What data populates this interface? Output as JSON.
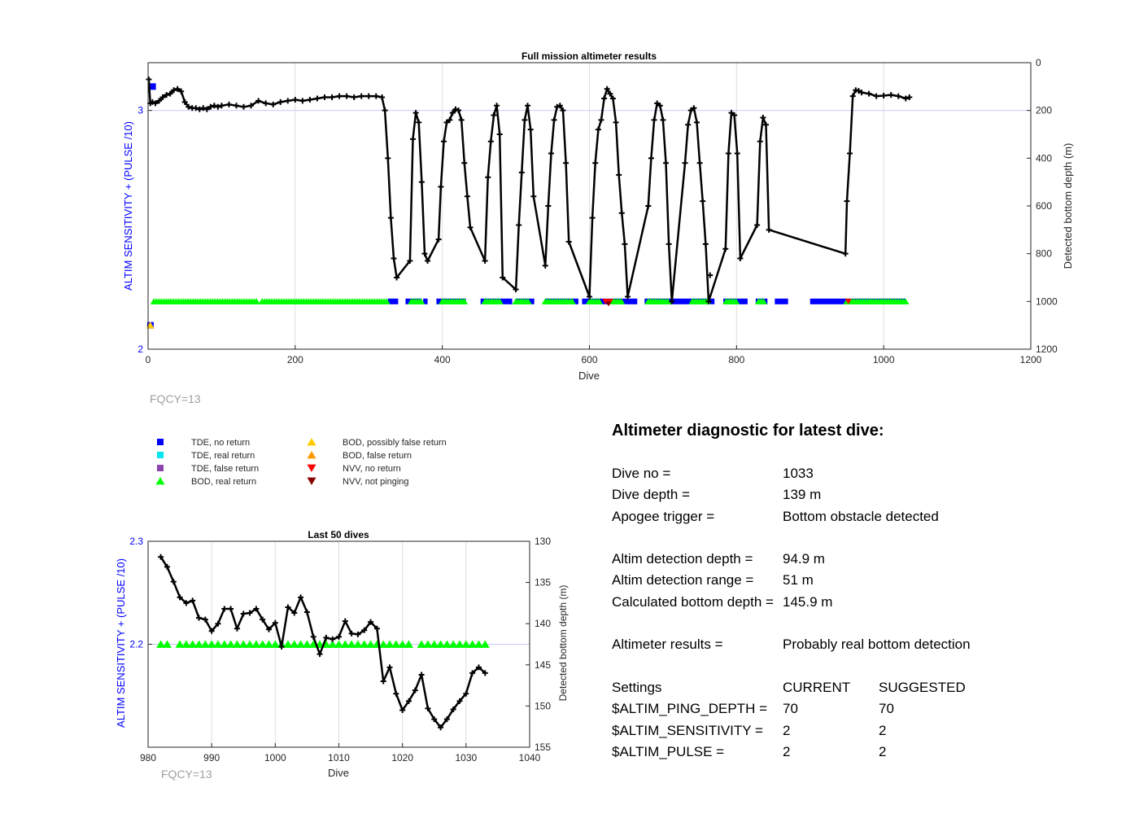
{
  "colors": {
    "tde_no_return": "#0000ff",
    "tde_real_return": "#00e5ee",
    "tde_false_return": "#8e44ad",
    "bod_real_return": "#00ff00",
    "bod_possibly_false": "#ffcc00",
    "bod_false": "#ff9900",
    "nvv_no_return": "#ff0000",
    "nvv_not_pinging": "#8b0000",
    "depth_line": "#000000",
    "left_axis": "#0000ff",
    "fqcy": "#a0a0a0"
  },
  "fqcy_main": "FQCY=13",
  "fqcy_small": "FQCY=13",
  "chart_data": [
    {
      "type": "scatter",
      "title": "Full mission altimeter results",
      "xlabel": "Dive",
      "ylabel": "ALTIM SENSITIVITY + (PULSE /10)",
      "y2label": "Detected bottom depth (m)",
      "xlim": [
        0,
        1200
      ],
      "ylim": [
        2,
        3.2
      ],
      "y2lim": [
        1200,
        0
      ],
      "y2_reversed": true,
      "xticks": [
        "0",
        "200",
        "400",
        "600",
        "800",
        "1000",
        "1200"
      ],
      "yticks": [
        "2",
        "3"
      ],
      "y2ticks": [
        "0",
        "200",
        "400",
        "600",
        "800",
        "1000",
        "1200"
      ],
      "grid": true,
      "depth_series": {
        "name": "Detected bottom depth",
        "x": [
          1,
          3,
          6,
          10,
          15,
          20,
          25,
          30,
          35,
          40,
          45,
          50,
          55,
          60,
          65,
          70,
          75,
          80,
          85,
          90,
          95,
          100,
          110,
          120,
          130,
          140,
          150,
          160,
          170,
          180,
          190,
          200,
          210,
          220,
          230,
          240,
          250,
          260,
          270,
          280,
          290,
          300,
          310,
          318,
          322,
          326,
          330,
          334,
          338,
          356,
          360,
          364,
          368,
          372,
          376,
          380,
          395,
          398,
          402,
          406,
          410,
          414,
          418,
          422,
          426,
          430,
          434,
          438,
          458,
          462,
          466,
          470,
          474,
          478,
          482,
          500,
          504,
          508,
          512,
          516,
          520,
          524,
          540,
          544,
          548,
          552,
          556,
          560,
          564,
          568,
          572,
          600,
          604,
          608,
          612,
          616,
          620,
          624,
          628,
          632,
          636,
          640,
          644,
          648,
          652,
          680,
          684,
          688,
          692,
          696,
          700,
          704,
          708,
          712,
          730,
          734,
          738,
          742,
          746,
          750,
          754,
          758,
          762,
          785,
          789,
          793,
          797,
          801,
          805,
          828,
          832,
          836,
          840,
          844,
          948,
          950,
          954,
          958,
          962,
          966,
          970,
          980,
          990,
          1000,
          1010,
          1020,
          1030,
          1035
        ],
        "y": [
          70,
          170,
          165,
          170,
          160,
          145,
          135,
          130,
          115,
          110,
          120,
          165,
          185,
          190,
          190,
          195,
          190,
          195,
          185,
          180,
          185,
          180,
          175,
          180,
          185,
          180,
          160,
          170,
          175,
          165,
          160,
          155,
          160,
          155,
          150,
          145,
          145,
          140,
          140,
          145,
          140,
          140,
          140,
          145,
          200,
          400,
          650,
          820,
          900,
          830,
          320,
          210,
          250,
          500,
          800,
          830,
          740,
          520,
          330,
          250,
          240,
          210,
          195,
          200,
          240,
          420,
          560,
          690,
          830,
          480,
          330,
          220,
          180,
          300,
          900,
          950,
          680,
          460,
          240,
          180,
          280,
          560,
          850,
          600,
          380,
          240,
          185,
          180,
          200,
          420,
          750,
          980,
          650,
          420,
          280,
          240,
          150,
          110,
          130,
          150,
          250,
          470,
          630,
          760,
          980,
          600,
          400,
          240,
          170,
          180,
          240,
          420,
          760,
          1000,
          420,
          260,
          200,
          190,
          250,
          420,
          580,
          760,
          1000,
          780,
          380,
          210,
          220,
          380,
          820,
          680,
          330,
          230,
          260,
          700,
          800,
          580,
          380,
          140,
          115,
          118,
          125,
          130,
          140,
          138,
          135,
          140,
          150,
          145
        ],
        "outlier": {
          "x": 764,
          "y": 890
        }
      },
      "marker_baseline_y2": 1000,
      "bod_real_segments": [
        [
          8,
          35
        ],
        [
          38,
          150
        ],
        [
          155,
          325
        ],
        [
          358,
          372
        ],
        [
          400,
          432
        ],
        [
          458,
          480
        ],
        [
          500,
          518
        ],
        [
          540,
          578
        ],
        [
          600,
          615
        ],
        [
          630,
          645
        ],
        [
          680,
          708
        ],
        [
          740,
          762
        ],
        [
          786,
          800
        ],
        [
          830,
          838
        ],
        [
          950,
          1030
        ]
      ],
      "tde_no_return_segments": [
        [
          326,
          340
        ],
        [
          350,
          372
        ],
        [
          374,
          380
        ],
        [
          392,
          432
        ],
        [
          452,
          495
        ],
        [
          500,
          525
        ],
        [
          540,
          585
        ],
        [
          590,
          665
        ],
        [
          675,
          770
        ],
        [
          782,
          815
        ],
        [
          826,
          842
        ],
        [
          852,
          870
        ],
        [
          900,
          1030
        ]
      ],
      "nvv_no_return_x": [
        622,
        628,
        952
      ],
      "nvv_not_pinging_x": [
        626
      ],
      "early_points": {
        "tde_no_return": [
          [
            4,
            3.1
          ],
          [
            1,
            2.1
          ]
        ],
        "bod_possibly_false": [
          [
            3,
            2.1
          ]
        ]
      }
    },
    {
      "type": "scatter",
      "title": "Last 50 dives",
      "xlabel": "Dive",
      "ylabel": "ALTIM SENSITIVITY + (PULSE /10)",
      "y2label": "Detected bottom depth (m)",
      "xlim": [
        980,
        1040
      ],
      "ylim": [
        2.1,
        2.3
      ],
      "y2lim": [
        155,
        130
      ],
      "y2_reversed": true,
      "xticks": [
        "980",
        "990",
        "1000",
        "1010",
        "1020",
        "1030",
        "1040"
      ],
      "yticks": [
        "2.2",
        "2.3"
      ],
      "y2ticks": [
        "130",
        "135",
        "140",
        "145",
        "150",
        "155"
      ],
      "grid": true,
      "depth_series": {
        "name": "Detected bottom depth",
        "x": [
          982,
          983,
          984,
          985,
          986,
          987,
          988,
          989,
          990,
          991,
          992,
          993,
          994,
          995,
          996,
          997,
          998,
          999,
          1000,
          1001,
          1002,
          1003,
          1004,
          1005,
          1006,
          1007,
          1008,
          1009,
          1010,
          1011,
          1012,
          1013,
          1014,
          1015,
          1016,
          1017,
          1018,
          1019,
          1020,
          1021,
          1022,
          1023,
          1024,
          1025,
          1026,
          1027,
          1028,
          1029,
          1030,
          1031,
          1032,
          1033
        ],
        "y": [
          131.9,
          133.1,
          134.9,
          136.8,
          137.5,
          137.2,
          139.3,
          139.5,
          140.9,
          140.0,
          138.2,
          138.2,
          140.6,
          138.8,
          138.7,
          138.2,
          139.5,
          140.7,
          139.9,
          142.8,
          138.0,
          138.7,
          136.8,
          138.6,
          141.6,
          143.7,
          141.7,
          141.9,
          141.6,
          139.7,
          141.2,
          141.3,
          140.8,
          139.8,
          140.6,
          147.0,
          145.3,
          148.5,
          150.5,
          149.4,
          148.1,
          146.2,
          150.3,
          151.6,
          152.6,
          151.6,
          150.4,
          149.4,
          148.5,
          146.0,
          145.3,
          146.0
        ]
      },
      "bod_real_x": [
        982,
        983,
        985,
        986,
        987,
        988,
        989,
        990,
        991,
        992,
        993,
        994,
        995,
        996,
        997,
        998,
        999,
        1000,
        1001,
        1002,
        1003,
        1004,
        1005,
        1006,
        1007,
        1008,
        1009,
        1010,
        1011,
        1012,
        1013,
        1014,
        1015,
        1016,
        1017,
        1018,
        1019,
        1020,
        1021,
        1023,
        1024,
        1025,
        1026,
        1027,
        1028,
        1029,
        1030,
        1031,
        1032,
        1033
      ],
      "bod_real_y": 2.2
    }
  ],
  "legend": {
    "items": [
      {
        "label": "TDE, no return",
        "marker": "square",
        "color_key": "tde_no_return"
      },
      {
        "label": "TDE, real return",
        "marker": "square",
        "color_key": "tde_real_return"
      },
      {
        "label": "TDE, false return",
        "marker": "square",
        "color_key": "tde_false_return"
      },
      {
        "label": "BOD, real return",
        "marker": "triangle-up",
        "color_key": "bod_real_return"
      },
      {
        "label": "BOD, possibly false return",
        "marker": "triangle-up",
        "color_key": "bod_possibly_false"
      },
      {
        "label": "BOD, false return",
        "marker": "triangle-up",
        "color_key": "bod_false"
      },
      {
        "label": "NVV, no return",
        "marker": "triangle-down",
        "color_key": "nvv_no_return"
      },
      {
        "label": "NVV, not pinging",
        "marker": "triangle-down",
        "color_key": "nvv_not_pinging"
      }
    ]
  },
  "diagnostic": {
    "title": "Altimeter diagnostic for latest dive:",
    "dive_no_label": "Dive no =",
    "dive_no": "1033",
    "dive_depth_label": "Dive depth =",
    "dive_depth": "139 m",
    "apogee_label": "Apogee trigger =",
    "apogee": "Bottom obstacle detected",
    "altim_depth_label": "Altim detection depth =",
    "altim_depth": "94.9 m",
    "altim_range_label": "Altim detection range =",
    "altim_range": "51 m",
    "calc_depth_label": "Calculated bottom depth =",
    "calc_depth": "145.9 m",
    "results_label": "Altimeter results =",
    "results": "Probably real bottom detection",
    "settings_label": "Settings",
    "current_label": "CURRENT",
    "suggested_label": "SUGGESTED",
    "settings": [
      {
        "name": "$ALTIM_PING_DEPTH =",
        "current": "70",
        "suggested": "70"
      },
      {
        "name": "$ALTIM_SENSITIVITY =",
        "current": "2",
        "suggested": "2"
      },
      {
        "name": "$ALTIM_PULSE =",
        "current": "2",
        "suggested": "2"
      }
    ]
  }
}
